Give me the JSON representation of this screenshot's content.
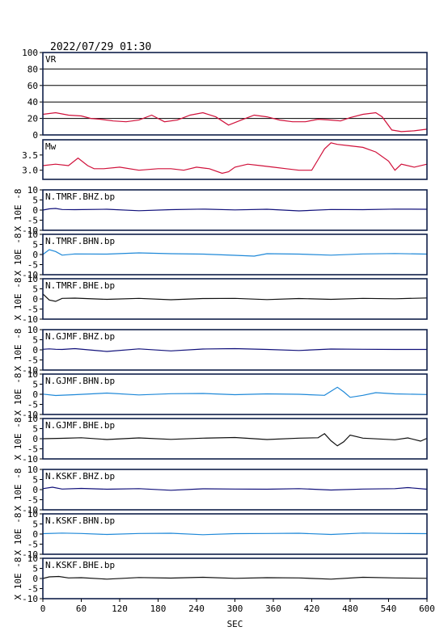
{
  "header": {
    "datetime": "2022/07/29 01:30"
  },
  "colors": {
    "vr": "#d0103a",
    "mw": "#d0103a",
    "bhz": "#10107a",
    "bhn": "#1e88d8",
    "bhe": "#101010",
    "axis": "#10204a"
  },
  "chart_data": [
    {
      "type": "line",
      "label": "VR",
      "ylim": [
        0,
        100
      ],
      "yticks": [
        "100",
        "80",
        "60",
        "40",
        "20",
        "0"
      ],
      "grid": true,
      "x": [
        0,
        20,
        40,
        60,
        75,
        90,
        110,
        130,
        150,
        170,
        180,
        190,
        210,
        230,
        250,
        270,
        290,
        310,
        330,
        350,
        370,
        390,
        410,
        430,
        450,
        465,
        480,
        500,
        520,
        530,
        545,
        560,
        580,
        600
      ],
      "values": [
        25,
        27,
        24,
        23,
        20,
        19,
        17,
        16,
        18,
        24,
        20,
        16,
        18,
        24,
        27,
        22,
        12,
        18,
        24,
        22,
        18,
        16,
        16,
        19,
        18,
        17,
        21,
        25,
        27,
        22,
        6,
        4,
        5,
        7
      ]
    },
    {
      "type": "line",
      "label": "Mw",
      "ylim": [
        2.7,
        4.0
      ],
      "yticks": [
        "3.5",
        "3.0"
      ],
      "x": [
        0,
        20,
        40,
        55,
        70,
        80,
        95,
        120,
        150,
        180,
        200,
        220,
        240,
        260,
        280,
        290,
        300,
        320,
        340,
        360,
        380,
        400,
        420,
        430,
        440,
        450,
        460,
        480,
        500,
        520,
        540,
        550,
        560,
        580,
        600
      ],
      "values": [
        3.15,
        3.2,
        3.15,
        3.4,
        3.15,
        3.05,
        3.05,
        3.1,
        3.0,
        3.05,
        3.05,
        3.0,
        3.1,
        3.05,
        2.9,
        2.95,
        3.1,
        3.2,
        3.15,
        3.1,
        3.05,
        3.0,
        3.0,
        3.35,
        3.7,
        3.9,
        3.85,
        3.8,
        3.75,
        3.6,
        3.3,
        3.0,
        3.2,
        3.1,
        3.2
      ]
    },
    {
      "type": "line",
      "label": "N.TMRF.BHZ.bp",
      "ylim": [
        -10,
        10
      ],
      "yunit": "X 10E -8",
      "yticks": [
        "10",
        "5",
        "0",
        "-5",
        "-10"
      ],
      "color_key": "bhz",
      "x": [
        0,
        10,
        20,
        30,
        50,
        100,
        150,
        200,
        250,
        300,
        350,
        400,
        450,
        500,
        550,
        600
      ],
      "values": [
        0,
        0.6,
        0.8,
        0.3,
        0.2,
        0.4,
        -0.3,
        0.2,
        0.5,
        0.1,
        0.4,
        -0.4,
        0.3,
        0.2,
        0.5,
        0.4
      ]
    },
    {
      "type": "line",
      "label": "N.TMRF.BHN.bp",
      "ylim": [
        -10,
        10
      ],
      "yunit": "X 10E -8",
      "yticks": [
        "10",
        "5",
        "0",
        "-5",
        "-10"
      ],
      "color_key": "bhn",
      "x": [
        0,
        10,
        20,
        30,
        50,
        100,
        150,
        200,
        250,
        300,
        330,
        350,
        400,
        450,
        500,
        550,
        600
      ],
      "values": [
        0,
        2.4,
        1.5,
        -0.3,
        0.3,
        0.2,
        0.8,
        0.4,
        0.2,
        -0.4,
        -0.8,
        0.4,
        0.2,
        -0.3,
        0.3,
        0.5,
        0.2
      ]
    },
    {
      "type": "line",
      "label": "N.TMRF.BHE.bp",
      "ylim": [
        -10,
        10
      ],
      "yunit": "X 10E -8",
      "yticks": [
        "10",
        "5",
        "0",
        "-5",
        "-10"
      ],
      "color_key": "bhe",
      "x": [
        0,
        10,
        20,
        30,
        50,
        100,
        150,
        200,
        250,
        300,
        350,
        400,
        450,
        500,
        550,
        600
      ],
      "values": [
        2.5,
        -0.5,
        -1.2,
        0.3,
        0.4,
        -0.2,
        0.3,
        -0.4,
        0.2,
        0.3,
        -0.3,
        0.2,
        -0.2,
        0.3,
        0.1,
        0.5
      ]
    },
    {
      "type": "line",
      "label": "N.GJMF.BHZ.bp",
      "ylim": [
        -10,
        10
      ],
      "yunit": "X 10E -8",
      "yticks": [
        "10",
        "5",
        "0",
        "-5",
        "-10"
      ],
      "color_key": "bhz",
      "x": [
        0,
        10,
        20,
        30,
        50,
        100,
        150,
        200,
        250,
        300,
        350,
        400,
        450,
        500,
        550,
        600
      ],
      "values": [
        0.3,
        0.5,
        0.3,
        0.2,
        0.6,
        -0.8,
        0.5,
        -0.5,
        0.4,
        0.6,
        0.2,
        -0.3,
        0.4,
        0.3,
        0.2,
        0.2
      ]
    },
    {
      "type": "line",
      "label": "N.GJMF.BHN.bp",
      "ylim": [
        -10,
        10
      ],
      "yunit": "X 10E -8",
      "yticks": [
        "10",
        "5",
        "0",
        "-5",
        "-10"
      ],
      "color_key": "bhn",
      "x": [
        0,
        20,
        50,
        100,
        150,
        200,
        250,
        300,
        350,
        400,
        440,
        450,
        460,
        470,
        480,
        500,
        520,
        550,
        600
      ],
      "values": [
        0.1,
        -0.6,
        -0.2,
        0.6,
        -0.3,
        0.3,
        0.4,
        -0.2,
        0.2,
        0.0,
        -0.5,
        1.5,
        3.5,
        1.2,
        -1.5,
        -0.5,
        0.8,
        0.2,
        -0.1
      ]
    },
    {
      "type": "line",
      "label": "N.GJMF.BHE.bp",
      "ylim": [
        -10,
        10
      ],
      "yunit": "X 10E -8",
      "yticks": [
        "10",
        "5",
        "0",
        "-5",
        "-10"
      ],
      "color_key": "bhe",
      "x": [
        0,
        30,
        60,
        100,
        150,
        200,
        250,
        300,
        350,
        400,
        430,
        440,
        450,
        460,
        470,
        480,
        500,
        550,
        570,
        590,
        600
      ],
      "values": [
        0,
        0.2,
        0.5,
        -0.4,
        0.4,
        -0.3,
        0.3,
        0.6,
        -0.4,
        0.3,
        0.5,
        2.5,
        -1.0,
        -3.5,
        -1.5,
        1.8,
        0.3,
        -0.5,
        0.4,
        -1.2,
        0.2
      ]
    },
    {
      "type": "line",
      "label": "N.KSKF.BHZ.bp",
      "ylim": [
        -10,
        10
      ],
      "yunit": "X 10E -8",
      "yticks": [
        "10",
        "5",
        "0",
        "-5",
        "-10"
      ],
      "color_key": "bhz",
      "x": [
        0,
        15,
        30,
        60,
        100,
        150,
        200,
        250,
        300,
        350,
        400,
        450,
        500,
        550,
        570,
        600
      ],
      "values": [
        0.5,
        1.2,
        0.3,
        0.6,
        0.2,
        0.5,
        -0.3,
        0.4,
        0.3,
        0.2,
        0.5,
        -0.2,
        0.3,
        0.5,
        1.0,
        0.2
      ]
    },
    {
      "type": "line",
      "label": "N.KSKF.BHN.bp",
      "ylim": [
        -10,
        10
      ],
      "yunit": "X 10E -8",
      "yticks": [
        "10",
        "5",
        "0",
        "-5",
        "-10"
      ],
      "color_key": "bhn",
      "x": [
        0,
        30,
        60,
        100,
        150,
        200,
        250,
        300,
        350,
        400,
        450,
        500,
        550,
        600
      ],
      "values": [
        0.2,
        0.5,
        0.3,
        -0.2,
        0.3,
        0.4,
        -0.3,
        0.2,
        0.3,
        0.4,
        -0.2,
        0.5,
        0.3,
        0.2
      ]
    },
    {
      "type": "line",
      "label": "N.KSKF.BHE.bp",
      "ylim": [
        -10,
        10
      ],
      "yunit": "X 10E -8",
      "yticks": [
        "10",
        "5",
        "0",
        "-5",
        "-10"
      ],
      "color_key": "bhe",
      "x": [
        0,
        10,
        25,
        40,
        60,
        100,
        150,
        200,
        250,
        300,
        350,
        400,
        450,
        500,
        550,
        600
      ],
      "values": [
        0,
        0.8,
        1.0,
        0.3,
        0.4,
        -0.3,
        0.5,
        0.2,
        0.6,
        0.1,
        0.4,
        0.3,
        -0.3,
        0.6,
        0.3,
        0.1
      ]
    }
  ],
  "xaxis": {
    "label": "SEC",
    "xlim": [
      0,
      600
    ],
    "ticks": [
      "0",
      "60",
      "120",
      "180",
      "240",
      "300",
      "360",
      "420",
      "480",
      "540",
      "600"
    ]
  }
}
